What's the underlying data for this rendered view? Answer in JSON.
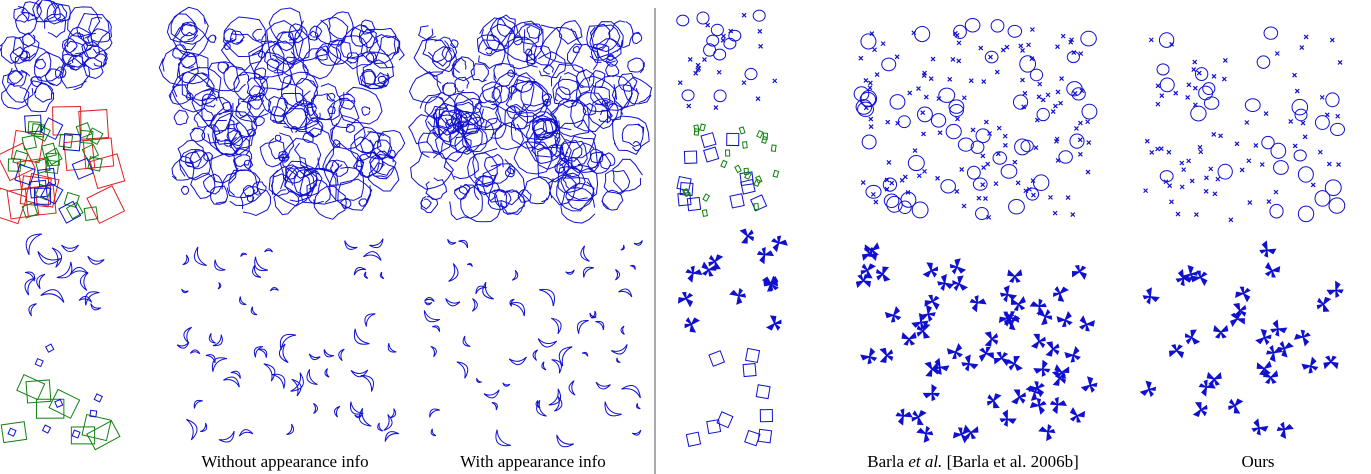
{
  "figure": {
    "captions": [
      "Without appearance info",
      "With appearance info",
      {
        "author": "Barla",
        "etal": "et al.",
        "citation": "[Barla et al. 2006b]"
      },
      "Ours"
    ]
  }
}
